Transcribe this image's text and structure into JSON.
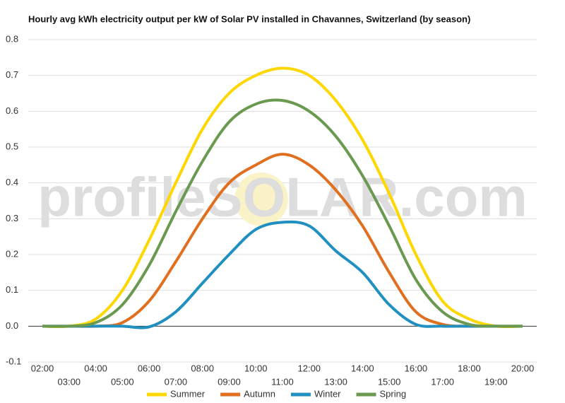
{
  "chart_data": {
    "type": "line",
    "title": "Hourly avg kWh electricity output per kW of Solar PV installed in Chavannes, Switzerland (by season)",
    "watermark": "profileSOLAR.com",
    "categories": [
      "02:00",
      "03:00",
      "04:00",
      "05:00",
      "06:00",
      "07:00",
      "08:00",
      "09:00",
      "10:00",
      "11:00",
      "12:00",
      "13:00",
      "14:00",
      "15:00",
      "16:00",
      "17:00",
      "18:00",
      "19:00",
      "20:00"
    ],
    "series": [
      {
        "name": "Summer",
        "color": "#ffd700",
        "values": [
          0,
          0,
          0.02,
          0.1,
          0.24,
          0.4,
          0.55,
          0.65,
          0.7,
          0.72,
          0.7,
          0.63,
          0.52,
          0.37,
          0.2,
          0.07,
          0.02,
          0,
          0
        ]
      },
      {
        "name": "Autumn",
        "color": "#e07020",
        "values": [
          0,
          0,
          0,
          0.01,
          0.07,
          0.18,
          0.3,
          0.4,
          0.45,
          0.48,
          0.45,
          0.38,
          0.28,
          0.15,
          0.04,
          0.005,
          0,
          0,
          0
        ]
      },
      {
        "name": "Winter",
        "color": "#2090c0",
        "values": [
          0,
          0,
          0,
          0,
          -0.002,
          0.04,
          0.12,
          0.2,
          0.27,
          0.29,
          0.28,
          0.21,
          0.15,
          0.06,
          0.005,
          0,
          0,
          0,
          0
        ]
      },
      {
        "name": "Spring",
        "color": "#6a9a50",
        "values": [
          0,
          0,
          0.01,
          0.06,
          0.17,
          0.32,
          0.46,
          0.57,
          0.62,
          0.63,
          0.6,
          0.53,
          0.42,
          0.28,
          0.13,
          0.04,
          0.005,
          0,
          0
        ]
      }
    ],
    "ylim": [
      -0.1,
      0.8
    ],
    "yticks": [
      -0.1,
      {
        "value": 0,
        "label": "0.0"
      },
      0.1,
      0.2,
      0.3,
      0.4,
      0.5,
      0.6,
      0.7,
      0.8
    ],
    "grid": true,
    "legend": "bottom"
  }
}
